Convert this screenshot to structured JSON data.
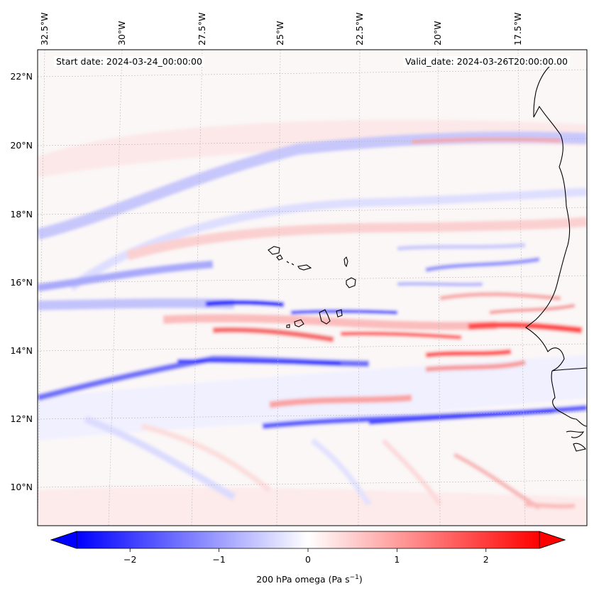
{
  "header": {
    "start_date": "Start date: 2024-03-24_00:00:00",
    "valid_date": "Valid_date: 2024-03-26T20:00:00.00"
  },
  "map": {
    "lon_labels": [
      "32.5°W",
      "30°W",
      "27.5°W",
      "25°W",
      "22.5°W",
      "20°W",
      "17.5°W"
    ],
    "lat_labels": [
      "22°N",
      "20°N",
      "18°N",
      "16°N",
      "14°N",
      "12°N",
      "10°N"
    ],
    "field": "200 hPa omega",
    "colormap": "bwr",
    "frame_color": "#000000",
    "coastline_color": "#000000"
  },
  "colorbar": {
    "label": "200 hPa omega (Pa s",
    "label_sup": "−1",
    "label_close": ")",
    "range": [
      -2.6,
      2.6
    ],
    "ticks": [
      {
        "value": -2,
        "label": "−2"
      },
      {
        "value": -1,
        "label": "−1"
      },
      {
        "value": 0,
        "label": "0"
      },
      {
        "value": 1,
        "label": "1"
      },
      {
        "value": 2,
        "label": "2"
      }
    ],
    "extend": "both",
    "min_color": "#0000ff",
    "mid_color": "#ffffff",
    "max_color": "#ff0000"
  }
}
